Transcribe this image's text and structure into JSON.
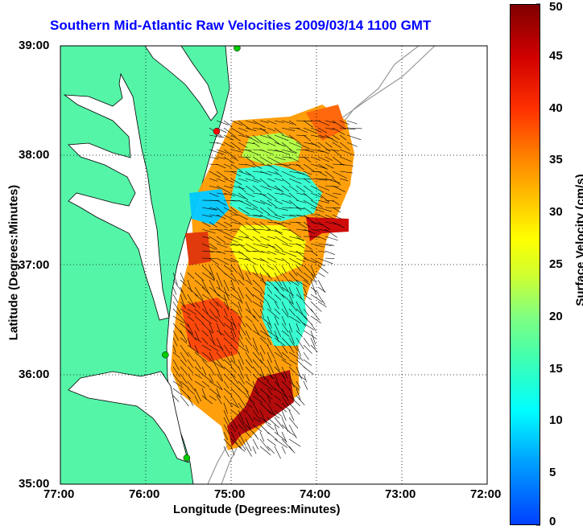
{
  "chart_data": {
    "type": "map-vector-field",
    "title": "Southern Mid-Atlantic Raw Velocities 2009/03/14 1100 GMT",
    "xlabel": "Longitude (Degrees:Minutes)",
    "ylabel": "Latitude (Degrees:Minutes)",
    "x_ticks": [
      "77:00",
      "76:00",
      "75:00",
      "74:00",
      "73:00",
      "72:00"
    ],
    "y_ticks": [
      "39:00",
      "38:00",
      "37:00",
      "36:00",
      "35:00"
    ],
    "xlim": [
      -77,
      -72
    ],
    "ylim": [
      35,
      39
    ],
    "grid": true,
    "colorbar": {
      "label": "Surface Velocity (cm/s)",
      "ticks": [
        "50",
        "45",
        "40",
        "35",
        "30",
        "25",
        "20",
        "15",
        "10",
        "5",
        "0"
      ],
      "range": [
        0,
        50
      ]
    },
    "stations": [
      {
        "lon": -74.93,
        "lat": 38.98,
        "color": "#00cc00"
      },
      {
        "lon": -75.17,
        "lat": 38.22,
        "color": "#ff0000"
      },
      {
        "lon": -75.77,
        "lat": 36.18,
        "color": "#00cc00"
      },
      {
        "lon": -75.52,
        "lat": 35.24,
        "color": "#00cc00"
      }
    ],
    "colors": {
      "land": "#55f5a8",
      "coast": "#000000",
      "bathymetry": "#999999",
      "title": "#0000ff"
    }
  }
}
